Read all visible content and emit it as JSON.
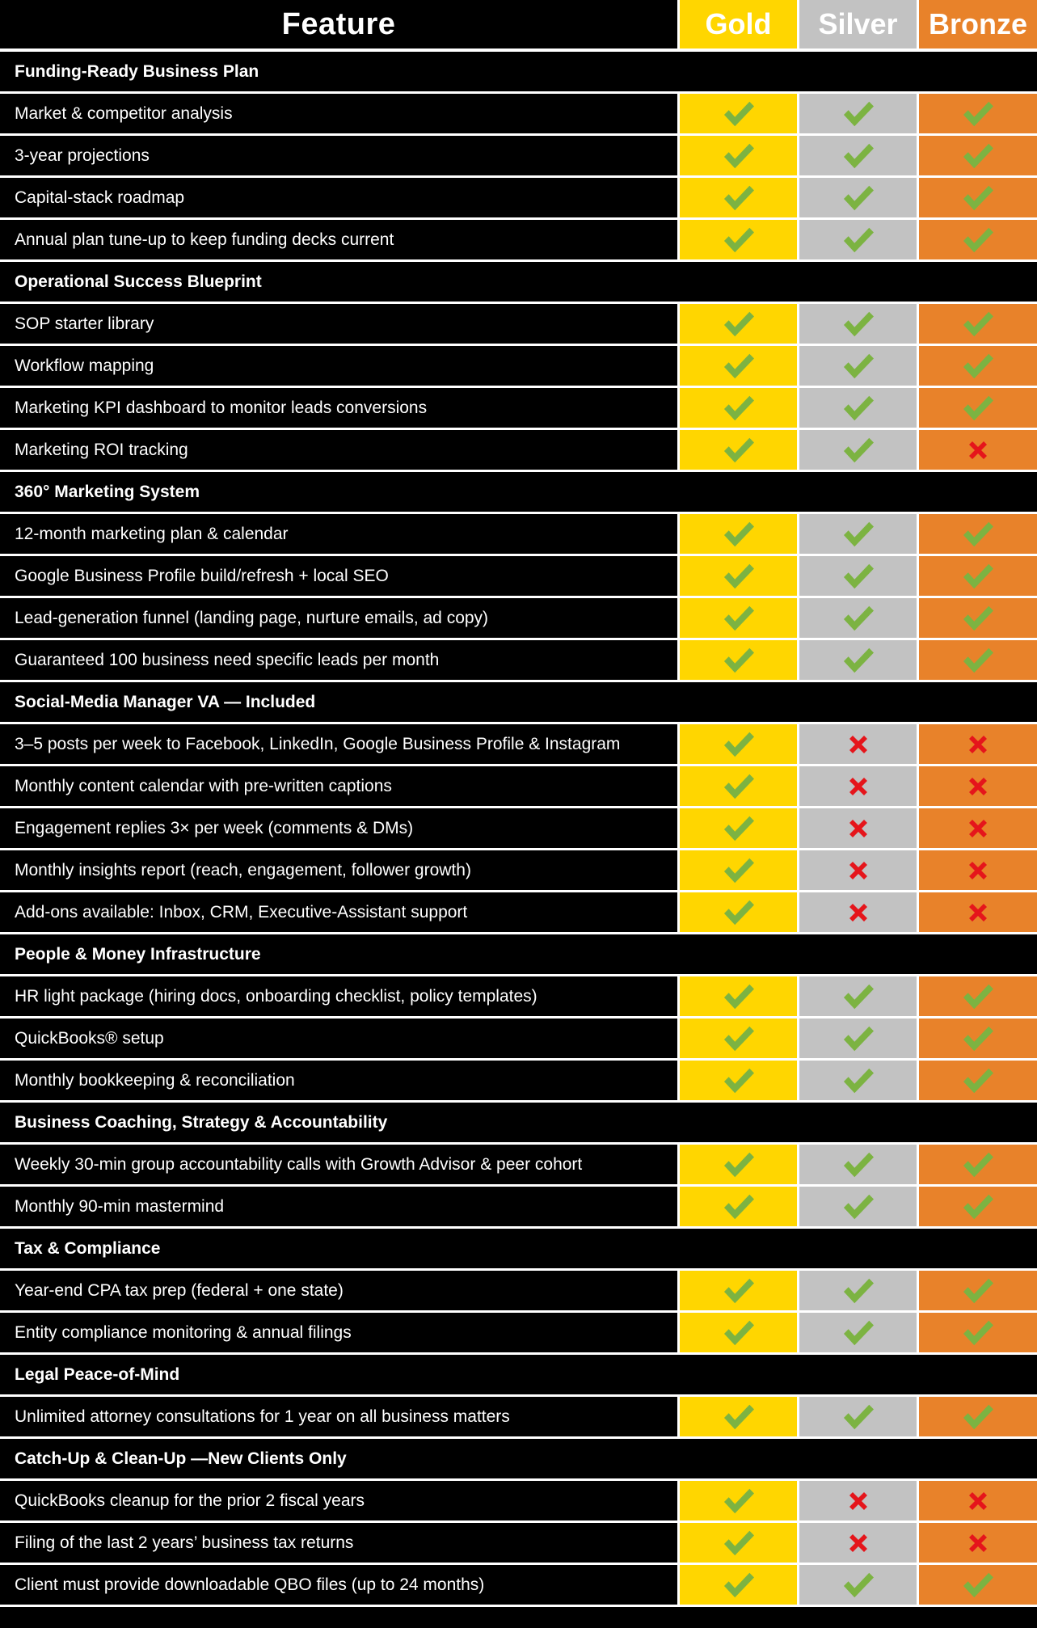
{
  "colors": {
    "gold": "#FFD600",
    "silver": "#C2C2C2",
    "bronze": "#E8822A",
    "check": "#7CB342",
    "cross": "#E5151B"
  },
  "header": {
    "feature_label": "Feature",
    "gold_label": "Gold",
    "silver_label": "Silver",
    "bronze_label": "Bronze"
  },
  "rows": [
    {
      "type": "section",
      "label": "Funding-Ready Business Plan"
    },
    {
      "type": "feature",
      "label": "Market & competitor analysis",
      "gold": true,
      "silver": true,
      "bronze": true
    },
    {
      "type": "feature",
      "label": "3-year projections",
      "gold": true,
      "silver": true,
      "bronze": true
    },
    {
      "type": "feature",
      "label": "Capital-stack roadmap",
      "gold": true,
      "silver": true,
      "bronze": true
    },
    {
      "type": "feature",
      "label": "Annual plan tune-up to keep funding decks current",
      "gold": true,
      "silver": true,
      "bronze": true
    },
    {
      "type": "section",
      "label": "Operational Success Blueprint"
    },
    {
      "type": "feature",
      "label": "SOP starter library",
      "gold": true,
      "silver": true,
      "bronze": true
    },
    {
      "type": "feature",
      "label": "Workflow mapping",
      "gold": true,
      "silver": true,
      "bronze": true
    },
    {
      "type": "feature",
      "label": "Marketing KPI dashboard to monitor leads conversions",
      "gold": true,
      "silver": true,
      "bronze": true
    },
    {
      "type": "feature",
      "label": "Marketing ROI tracking",
      "gold": true,
      "silver": true,
      "bronze": false
    },
    {
      "type": "section",
      "label": "360° Marketing System"
    },
    {
      "type": "feature",
      "label": "12-month marketing plan & calendar",
      "gold": true,
      "silver": true,
      "bronze": true
    },
    {
      "type": "feature",
      "label": "Google Business Profile build/refresh + local SEO",
      "gold": true,
      "silver": true,
      "bronze": true
    },
    {
      "type": "feature",
      "label": "Lead-generation funnel (landing page, nurture emails, ad copy)",
      "gold": true,
      "silver": true,
      "bronze": true
    },
    {
      "type": "feature",
      "label": "Guaranteed 100 business need specific leads per month",
      "gold": true,
      "silver": true,
      "bronze": true
    },
    {
      "type": "section",
      "label": "Social-Media Manager VA — Included"
    },
    {
      "type": "feature",
      "label": "3–5 posts per week to Facebook, LinkedIn, Google Business Profile & Instagram",
      "gold": true,
      "silver": false,
      "bronze": false
    },
    {
      "type": "feature",
      "label": "Monthly content calendar with pre-written captions",
      "gold": true,
      "silver": false,
      "bronze": false
    },
    {
      "type": "feature",
      "label": "Engagement replies 3× per week (comments & DMs)",
      "gold": true,
      "silver": false,
      "bronze": false
    },
    {
      "type": "feature",
      "label": "Monthly insights report (reach, engagement, follower growth)",
      "gold": true,
      "silver": false,
      "bronze": false
    },
    {
      "type": "feature",
      "label": "Add-ons available: Inbox, CRM, Executive-Assistant support",
      "gold": true,
      "silver": false,
      "bronze": false
    },
    {
      "type": "section",
      "label": "People & Money Infrastructure"
    },
    {
      "type": "feature",
      "label": "HR light package (hiring docs, onboarding checklist, policy templates)",
      "gold": true,
      "silver": true,
      "bronze": true
    },
    {
      "type": "feature",
      "label": "QuickBooks® setup",
      "gold": true,
      "silver": true,
      "bronze": true
    },
    {
      "type": "feature",
      "label": "Monthly bookkeeping & reconciliation",
      "gold": true,
      "silver": true,
      "bronze": true
    },
    {
      "type": "section",
      "label": "Business Coaching, Strategy & Accountability"
    },
    {
      "type": "feature",
      "label": "Weekly 30-min group accountability calls with Growth Advisor & peer cohort",
      "gold": true,
      "silver": true,
      "bronze": true
    },
    {
      "type": "feature",
      "label": "Monthly 90-min mastermind",
      "gold": true,
      "silver": true,
      "bronze": true
    },
    {
      "type": "section",
      "label": "Tax & Compliance"
    },
    {
      "type": "feature",
      "label": "Year-end CPA tax prep (federal + one state)",
      "gold": true,
      "silver": true,
      "bronze": true
    },
    {
      "type": "feature",
      "label": "Entity compliance monitoring & annual filings",
      "gold": true,
      "silver": true,
      "bronze": true
    },
    {
      "type": "section",
      "label": "Legal Peace-of-Mind"
    },
    {
      "type": "feature",
      "label": "Unlimited attorney consultations for 1 year on all business matters",
      "gold": true,
      "silver": true,
      "bronze": true
    },
    {
      "type": "section",
      "label": "Catch-Up & Clean-Up —New Clients Only"
    },
    {
      "type": "feature",
      "label": "QuickBooks cleanup for the prior 2 fiscal years",
      "gold": true,
      "silver": false,
      "bronze": false
    },
    {
      "type": "feature",
      "label": "Filing of the last 2 years’ business tax returns",
      "gold": true,
      "silver": false,
      "bronze": false
    },
    {
      "type": "feature",
      "label": "Client must provide downloadable QBO files (up to 24 months)",
      "gold": true,
      "silver": true,
      "bronze": true
    }
  ]
}
